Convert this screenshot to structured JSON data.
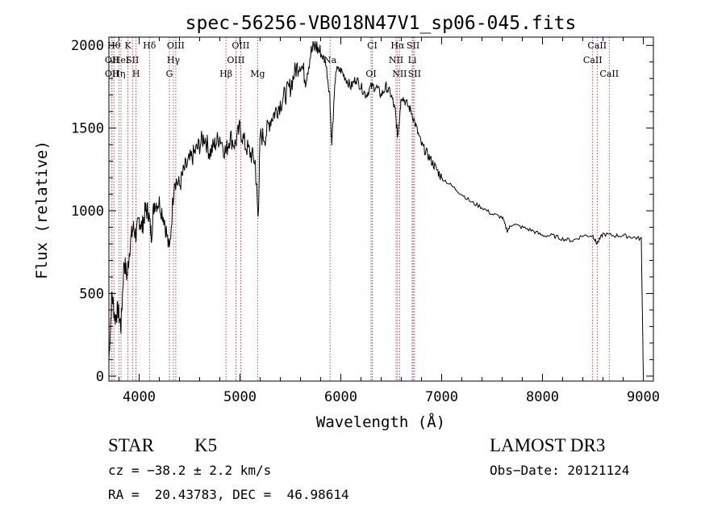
{
  "chart_data": {
    "type": "line",
    "title": "spec-56256-VB018N47V1_sp06-045.fits",
    "xlabel": "Wavelength (Å)",
    "ylabel": "Flux (relative)",
    "xlim": [
      3700,
      9100
    ],
    "ylim": [
      -30,
      2050
    ],
    "xticks": [
      4000,
      5000,
      6000,
      7000,
      8000,
      9000
    ],
    "yticks": [
      0,
      500,
      1000,
      1500,
      2000
    ],
    "xtick_labels": [
      "4000",
      "5000",
      "6000",
      "7000",
      "8000",
      "9000"
    ],
    "ytick_labels": [
      "0",
      "500",
      "1000",
      "1500",
      "2000"
    ],
    "grid": false,
    "line_color": "#000000",
    "marker_color": "#b22222",
    "series": [
      {
        "name": "spectrum",
        "x": [
          3700,
          3730,
          3760,
          3790,
          3820,
          3850,
          3880,
          3910,
          3940,
          3970,
          4000,
          4030,
          4060,
          4090,
          4120,
          4150,
          4200,
          4250,
          4300,
          4350,
          4400,
          4450,
          4500,
          4550,
          4600,
          4650,
          4700,
          4750,
          4800,
          4860,
          4900,
          4950,
          5000,
          5050,
          5100,
          5150,
          5180,
          5200,
          5250,
          5300,
          5350,
          5400,
          5450,
          5500,
          5550,
          5600,
          5650,
          5700,
          5750,
          5800,
          5850,
          5890,
          5910,
          5950,
          6000,
          6050,
          6100,
          6150,
          6200,
          6250,
          6300,
          6350,
          6400,
          6450,
          6500,
          6540,
          6563,
          6580,
          6600,
          6650,
          6700,
          6750,
          6800,
          6850,
          6900,
          6950,
          7000,
          7100,
          7200,
          7300,
          7400,
          7500,
          7600,
          7650,
          7700,
          7800,
          7900,
          8000,
          8100,
          8200,
          8300,
          8400,
          8500,
          8540,
          8600,
          8700,
          8800,
          8900,
          8980,
          9000
        ],
        "y": [
          100,
          500,
          350,
          400,
          300,
          700,
          600,
          800,
          900,
          850,
          950,
          900,
          1000,
          1000,
          850,
          1050,
          1050,
          950,
          750,
          1200,
          1150,
          1250,
          1300,
          1350,
          1400,
          1450,
          1350,
          1400,
          1450,
          1350,
          1450,
          1400,
          1500,
          1400,
          1350,
          1300,
          950,
          1450,
          1450,
          1550,
          1600,
          1650,
          1700,
          1750,
          1850,
          1900,
          1800,
          1950,
          2000,
          1950,
          1900,
          1700,
          1400,
          1850,
          1850,
          1800,
          1750,
          1800,
          1750,
          1700,
          1750,
          1750,
          1700,
          1750,
          1700,
          1600,
          1450,
          1550,
          1700,
          1650,
          1600,
          1500,
          1400,
          1350,
          1300,
          1250,
          1200,
          1150,
          1100,
          1050,
          1020,
          980,
          960,
          880,
          920,
          900,
          880,
          850,
          850,
          830,
          820,
          850,
          850,
          800,
          860,
          850,
          850,
          840,
          830,
          0
        ]
      }
    ],
    "line_markers": [
      {
        "wavelength": 3750,
        "label": "Hθ",
        "row": 0
      },
      {
        "wavelength": 3730,
        "label": "OII",
        "row": 1
      },
      {
        "wavelength": 3730,
        "label": "OII",
        "row": 2
      },
      {
        "wavelength": 3799,
        "label": "Hη",
        "row": 2
      },
      {
        "wavelength": 3820,
        "label": "HeI",
        "row": 1
      },
      {
        "wavelength": 3889,
        "label": "K",
        "row": 0
      },
      {
        "wavelength": 3934,
        "label": "SII",
        "row": 1
      },
      {
        "wavelength": 3969,
        "label": "H",
        "row": 2
      },
      {
        "wavelength": 4102,
        "label": "Hδ",
        "row": 0
      },
      {
        "wavelength": 4300,
        "label": "G",
        "row": 2
      },
      {
        "wavelength": 4340,
        "label": "Hγ",
        "row": 1
      },
      {
        "wavelength": 4363,
        "label": "OIII",
        "row": 0
      },
      {
        "wavelength": 4861,
        "label": "Hβ",
        "row": 2
      },
      {
        "wavelength": 4959,
        "label": "OIII",
        "row": 1
      },
      {
        "wavelength": 5007,
        "label": "OIII",
        "row": 0
      },
      {
        "wavelength": 5175,
        "label": "Mg",
        "row": 2
      },
      {
        "wavelength": 5893,
        "label": "Na",
        "row": 1
      },
      {
        "wavelength": 6300,
        "label": "OI",
        "row": 2
      },
      {
        "wavelength": 6312,
        "label": "CI",
        "row": 0
      },
      {
        "wavelength": 6548,
        "label": "NII",
        "row": 1
      },
      {
        "wavelength": 6563,
        "label": "Hα",
        "row": 0
      },
      {
        "wavelength": 6583,
        "label": "NII",
        "row": 2
      },
      {
        "wavelength": 6708,
        "label": "Li",
        "row": 1
      },
      {
        "wavelength": 6717,
        "label": "SII",
        "row": 0
      },
      {
        "wavelength": 6731,
        "label": "SII",
        "row": 2
      },
      {
        "wavelength": 8498,
        "label": "CaII",
        "row": 1
      },
      {
        "wavelength": 8542,
        "label": "CaII",
        "row": 0
      },
      {
        "wavelength": 8662,
        "label": "CaII",
        "row": 2
      }
    ]
  },
  "info": {
    "class": "STAR",
    "subclass": "K5",
    "survey": "LAMOST DR3",
    "cz": "cz = −38.2 ± 2.2 km/s",
    "obs_date": "Obs−Date: 20121124",
    "coords": "RA =  20.43783, DEC =  46.98614"
  }
}
